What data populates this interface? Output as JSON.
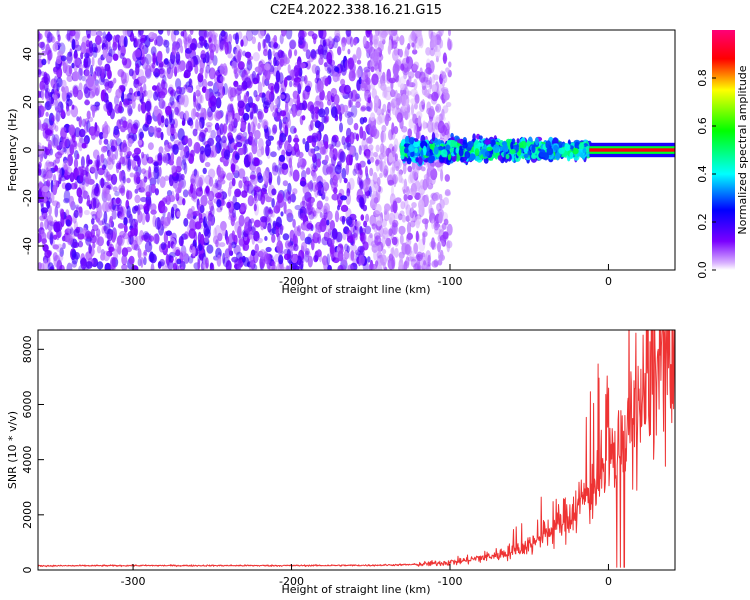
{
  "title": "C2E4.2022.338.16.21.G15",
  "chart_data": [
    {
      "type": "heatmap",
      "panel": "spectrogram",
      "xlabel": "Height of straight line (km)",
      "ylabel": "Frequency (Hz)",
      "xlim": [
        -360,
        42
      ],
      "ylim": [
        -50,
        50
      ],
      "x_ticks": [
        "-300",
        "-200",
        "-100",
        "0"
      ],
      "y_ticks": [
        "-40",
        "-20",
        "0",
        "20",
        "40"
      ],
      "colorbar": {
        "label": "Normalized spectral amplitude",
        "range": [
          0,
          1
        ],
        "ticks": [
          "0.0",
          "0.2",
          "0.4",
          "0.6",
          "0.8"
        ],
        "colors": [
          "#ffffff",
          "#7a00ff",
          "#0000ff",
          "#00ffff",
          "#00ff00",
          "#ffff00",
          "#ff0000",
          "#ff0066"
        ]
      },
      "signal_band": {
        "noise_region_x": [
          -360,
          -130
        ],
        "noise_amplitude": 0.15,
        "signal_start_x": -130,
        "strong_tone_start_x": -12,
        "tone_frequency_hz": 0
      }
    },
    {
      "type": "line",
      "panel": "snr",
      "xlabel": "Height of straight line (km)",
      "ylabel": "SNR (10 * v/v)",
      "xlim": [
        -360,
        42
      ],
      "ylim": [
        0,
        8700
      ],
      "x_ticks": [
        "-300",
        "-200",
        "-100",
        "0"
      ],
      "y_ticks": [
        "0",
        "2000",
        "4000",
        "6000",
        "8000"
      ],
      "color": "#ee3333",
      "series": [
        {
          "x": [
            -360,
            -300,
            -200,
            -150,
            -120,
            -100,
            -90,
            -80,
            -70,
            -60,
            -50,
            -40,
            -30,
            -20,
            -10,
            0,
            10,
            20,
            30,
            35,
            40,
            42
          ],
          "y": [
            150,
            160,
            160,
            170,
            200,
            280,
            350,
            450,
            550,
            700,
            900,
            1300,
            1700,
            2300,
            3000,
            3800,
            4800,
            5900,
            7200,
            7600,
            6800,
            6900
          ]
        }
      ]
    }
  ]
}
